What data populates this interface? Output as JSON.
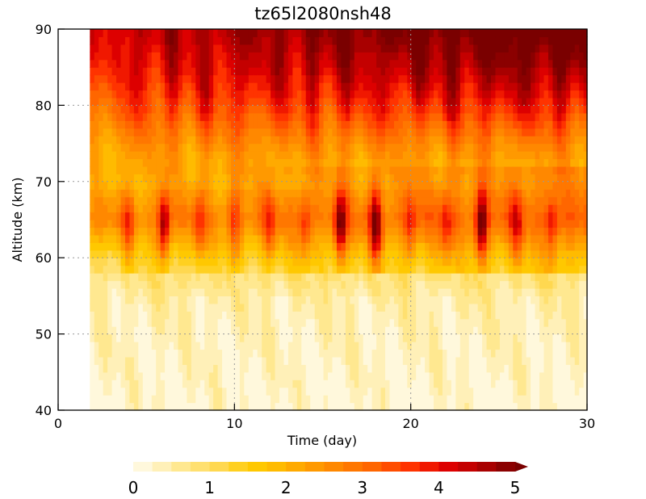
{
  "chart_data": {
    "type": "heatmap",
    "title": "tz65l2080nsh48",
    "xlabel": "Time (day)",
    "ylabel": "Altitude (km)",
    "xlim": [
      0,
      30
    ],
    "ylim": [
      40,
      90
    ],
    "x_ticks": [
      "0",
      "10",
      "20",
      "30"
    ],
    "y_ticks": [
      "40",
      "50",
      "60",
      "70",
      "80",
      "90"
    ],
    "grid": true,
    "data_start_day": 1.8,
    "colorbar": {
      "ticks": [
        "0",
        "1",
        "2",
        "3",
        "4",
        "5"
      ],
      "range": [
        0,
        5
      ],
      "levels": 20,
      "extend": "max",
      "colors": [
        "#fff8dc",
        "#fff0b8",
        "#ffe890",
        "#ffe070",
        "#ffd850",
        "#ffd020",
        "#ffc800",
        "#ffbb00",
        "#ffaa00",
        "#ff9900",
        "#ff8800",
        "#ff7700",
        "#ff6600",
        "#ff4d00",
        "#ff3300",
        "#f01800",
        "#dd0000",
        "#c40000",
        "#a80000",
        "#8b0000"
      ],
      "over_color": "#7a0000"
    },
    "bursts_day": [
      4,
      6,
      8,
      10,
      12,
      14,
      16,
      18,
      20,
      22,
      24,
      26,
      28
    ],
    "strong_bursts_day": [
      6,
      16,
      18,
      24
    ],
    "field_rows": [
      {
        "z": 40,
        "base": 0.2
      },
      {
        "z": 50,
        "base": 0.35
      },
      {
        "z": 55,
        "base": 0.5
      },
      {
        "z": 60,
        "base": 1.3
      },
      {
        "z": 65,
        "base": 2.6
      },
      {
        "z": 70,
        "base": 1.9
      },
      {
        "z": 75,
        "base": 2.3
      },
      {
        "z": 80,
        "base": 3.0
      },
      {
        "z": 85,
        "base": 3.6
      },
      {
        "z": 90,
        "base": 4.1
      }
    ]
  }
}
